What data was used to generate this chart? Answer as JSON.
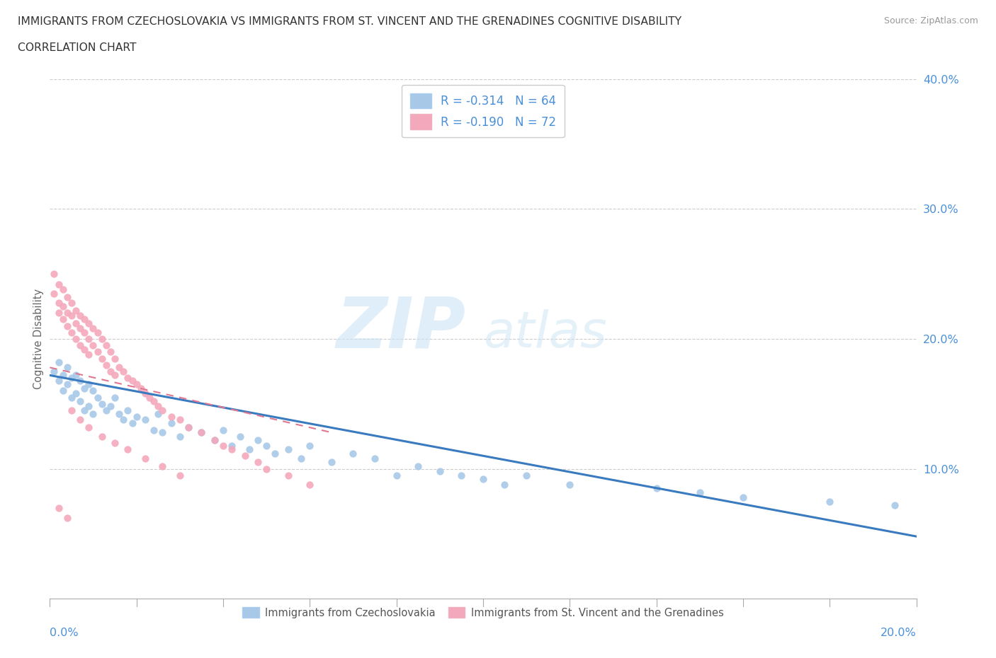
{
  "title_line1": "IMMIGRANTS FROM CZECHOSLOVAKIA VS IMMIGRANTS FROM ST. VINCENT AND THE GRENADINES COGNITIVE DISABILITY",
  "title_line2": "CORRELATION CHART",
  "source": "Source: ZipAtlas.com",
  "ylabel": "Cognitive Disability",
  "xmin": 0.0,
  "xmax": 0.2,
  "ymin": 0.0,
  "ymax": 0.4,
  "yticks": [
    0.0,
    0.1,
    0.2,
    0.3,
    0.4
  ],
  "ytick_labels": [
    "",
    "10.0%",
    "20.0%",
    "30.0%",
    "40.0%"
  ],
  "blue_R": -0.314,
  "blue_N": 64,
  "pink_R": -0.19,
  "pink_N": 72,
  "blue_color": "#a8c8e8",
  "pink_color": "#f4a8bc",
  "blue_line_color": "#3a7abf",
  "pink_line_color": "#e07890",
  "blue_line_x0": 0.0,
  "blue_line_y0": 0.172,
  "blue_line_x1": 0.2,
  "blue_line_y1": 0.048,
  "pink_line_x0": 0.0,
  "pink_line_y0": 0.178,
  "pink_line_x1": 0.065,
  "pink_line_y1": 0.128,
  "blue_scatter_x": [
    0.001,
    0.002,
    0.002,
    0.003,
    0.003,
    0.004,
    0.004,
    0.005,
    0.005,
    0.006,
    0.006,
    0.007,
    0.007,
    0.008,
    0.008,
    0.009,
    0.009,
    0.01,
    0.01,
    0.011,
    0.012,
    0.013,
    0.014,
    0.015,
    0.016,
    0.017,
    0.018,
    0.019,
    0.02,
    0.022,
    0.024,
    0.025,
    0.026,
    0.028,
    0.03,
    0.032,
    0.035,
    0.038,
    0.04,
    0.042,
    0.044,
    0.046,
    0.048,
    0.05,
    0.052,
    0.055,
    0.058,
    0.06,
    0.065,
    0.07,
    0.075,
    0.08,
    0.085,
    0.09,
    0.095,
    0.1,
    0.105,
    0.11,
    0.12,
    0.14,
    0.15,
    0.16,
    0.18,
    0.195
  ],
  "blue_scatter_y": [
    0.175,
    0.168,
    0.182,
    0.172,
    0.16,
    0.178,
    0.165,
    0.17,
    0.155,
    0.172,
    0.158,
    0.168,
    0.152,
    0.162,
    0.145,
    0.165,
    0.148,
    0.16,
    0.142,
    0.155,
    0.15,
    0.145,
    0.148,
    0.155,
    0.142,
    0.138,
    0.145,
    0.135,
    0.14,
    0.138,
    0.13,
    0.142,
    0.128,
    0.135,
    0.125,
    0.132,
    0.128,
    0.122,
    0.13,
    0.118,
    0.125,
    0.115,
    0.122,
    0.118,
    0.112,
    0.115,
    0.108,
    0.118,
    0.105,
    0.112,
    0.108,
    0.095,
    0.102,
    0.098,
    0.095,
    0.092,
    0.088,
    0.095,
    0.088,
    0.085,
    0.082,
    0.078,
    0.075,
    0.072
  ],
  "pink_scatter_x": [
    0.001,
    0.001,
    0.002,
    0.002,
    0.002,
    0.003,
    0.003,
    0.003,
    0.004,
    0.004,
    0.004,
    0.005,
    0.005,
    0.005,
    0.006,
    0.006,
    0.006,
    0.007,
    0.007,
    0.007,
    0.008,
    0.008,
    0.008,
    0.009,
    0.009,
    0.009,
    0.01,
    0.01,
    0.011,
    0.011,
    0.012,
    0.012,
    0.013,
    0.013,
    0.014,
    0.014,
    0.015,
    0.015,
    0.016,
    0.017,
    0.018,
    0.019,
    0.02,
    0.021,
    0.022,
    0.023,
    0.024,
    0.025,
    0.026,
    0.028,
    0.03,
    0.032,
    0.035,
    0.038,
    0.04,
    0.042,
    0.045,
    0.048,
    0.05,
    0.055,
    0.06,
    0.005,
    0.007,
    0.009,
    0.012,
    0.015,
    0.018,
    0.022,
    0.026,
    0.03,
    0.002,
    0.004
  ],
  "pink_scatter_y": [
    0.25,
    0.235,
    0.242,
    0.228,
    0.22,
    0.238,
    0.225,
    0.215,
    0.232,
    0.22,
    0.21,
    0.228,
    0.218,
    0.205,
    0.222,
    0.212,
    0.2,
    0.218,
    0.208,
    0.195,
    0.215,
    0.205,
    0.192,
    0.212,
    0.2,
    0.188,
    0.208,
    0.195,
    0.205,
    0.19,
    0.2,
    0.185,
    0.195,
    0.18,
    0.19,
    0.175,
    0.185,
    0.172,
    0.178,
    0.175,
    0.17,
    0.168,
    0.165,
    0.162,
    0.158,
    0.155,
    0.152,
    0.148,
    0.145,
    0.14,
    0.138,
    0.132,
    0.128,
    0.122,
    0.118,
    0.115,
    0.11,
    0.105,
    0.1,
    0.095,
    0.088,
    0.145,
    0.138,
    0.132,
    0.125,
    0.12,
    0.115,
    0.108,
    0.102,
    0.095,
    0.07,
    0.062
  ]
}
